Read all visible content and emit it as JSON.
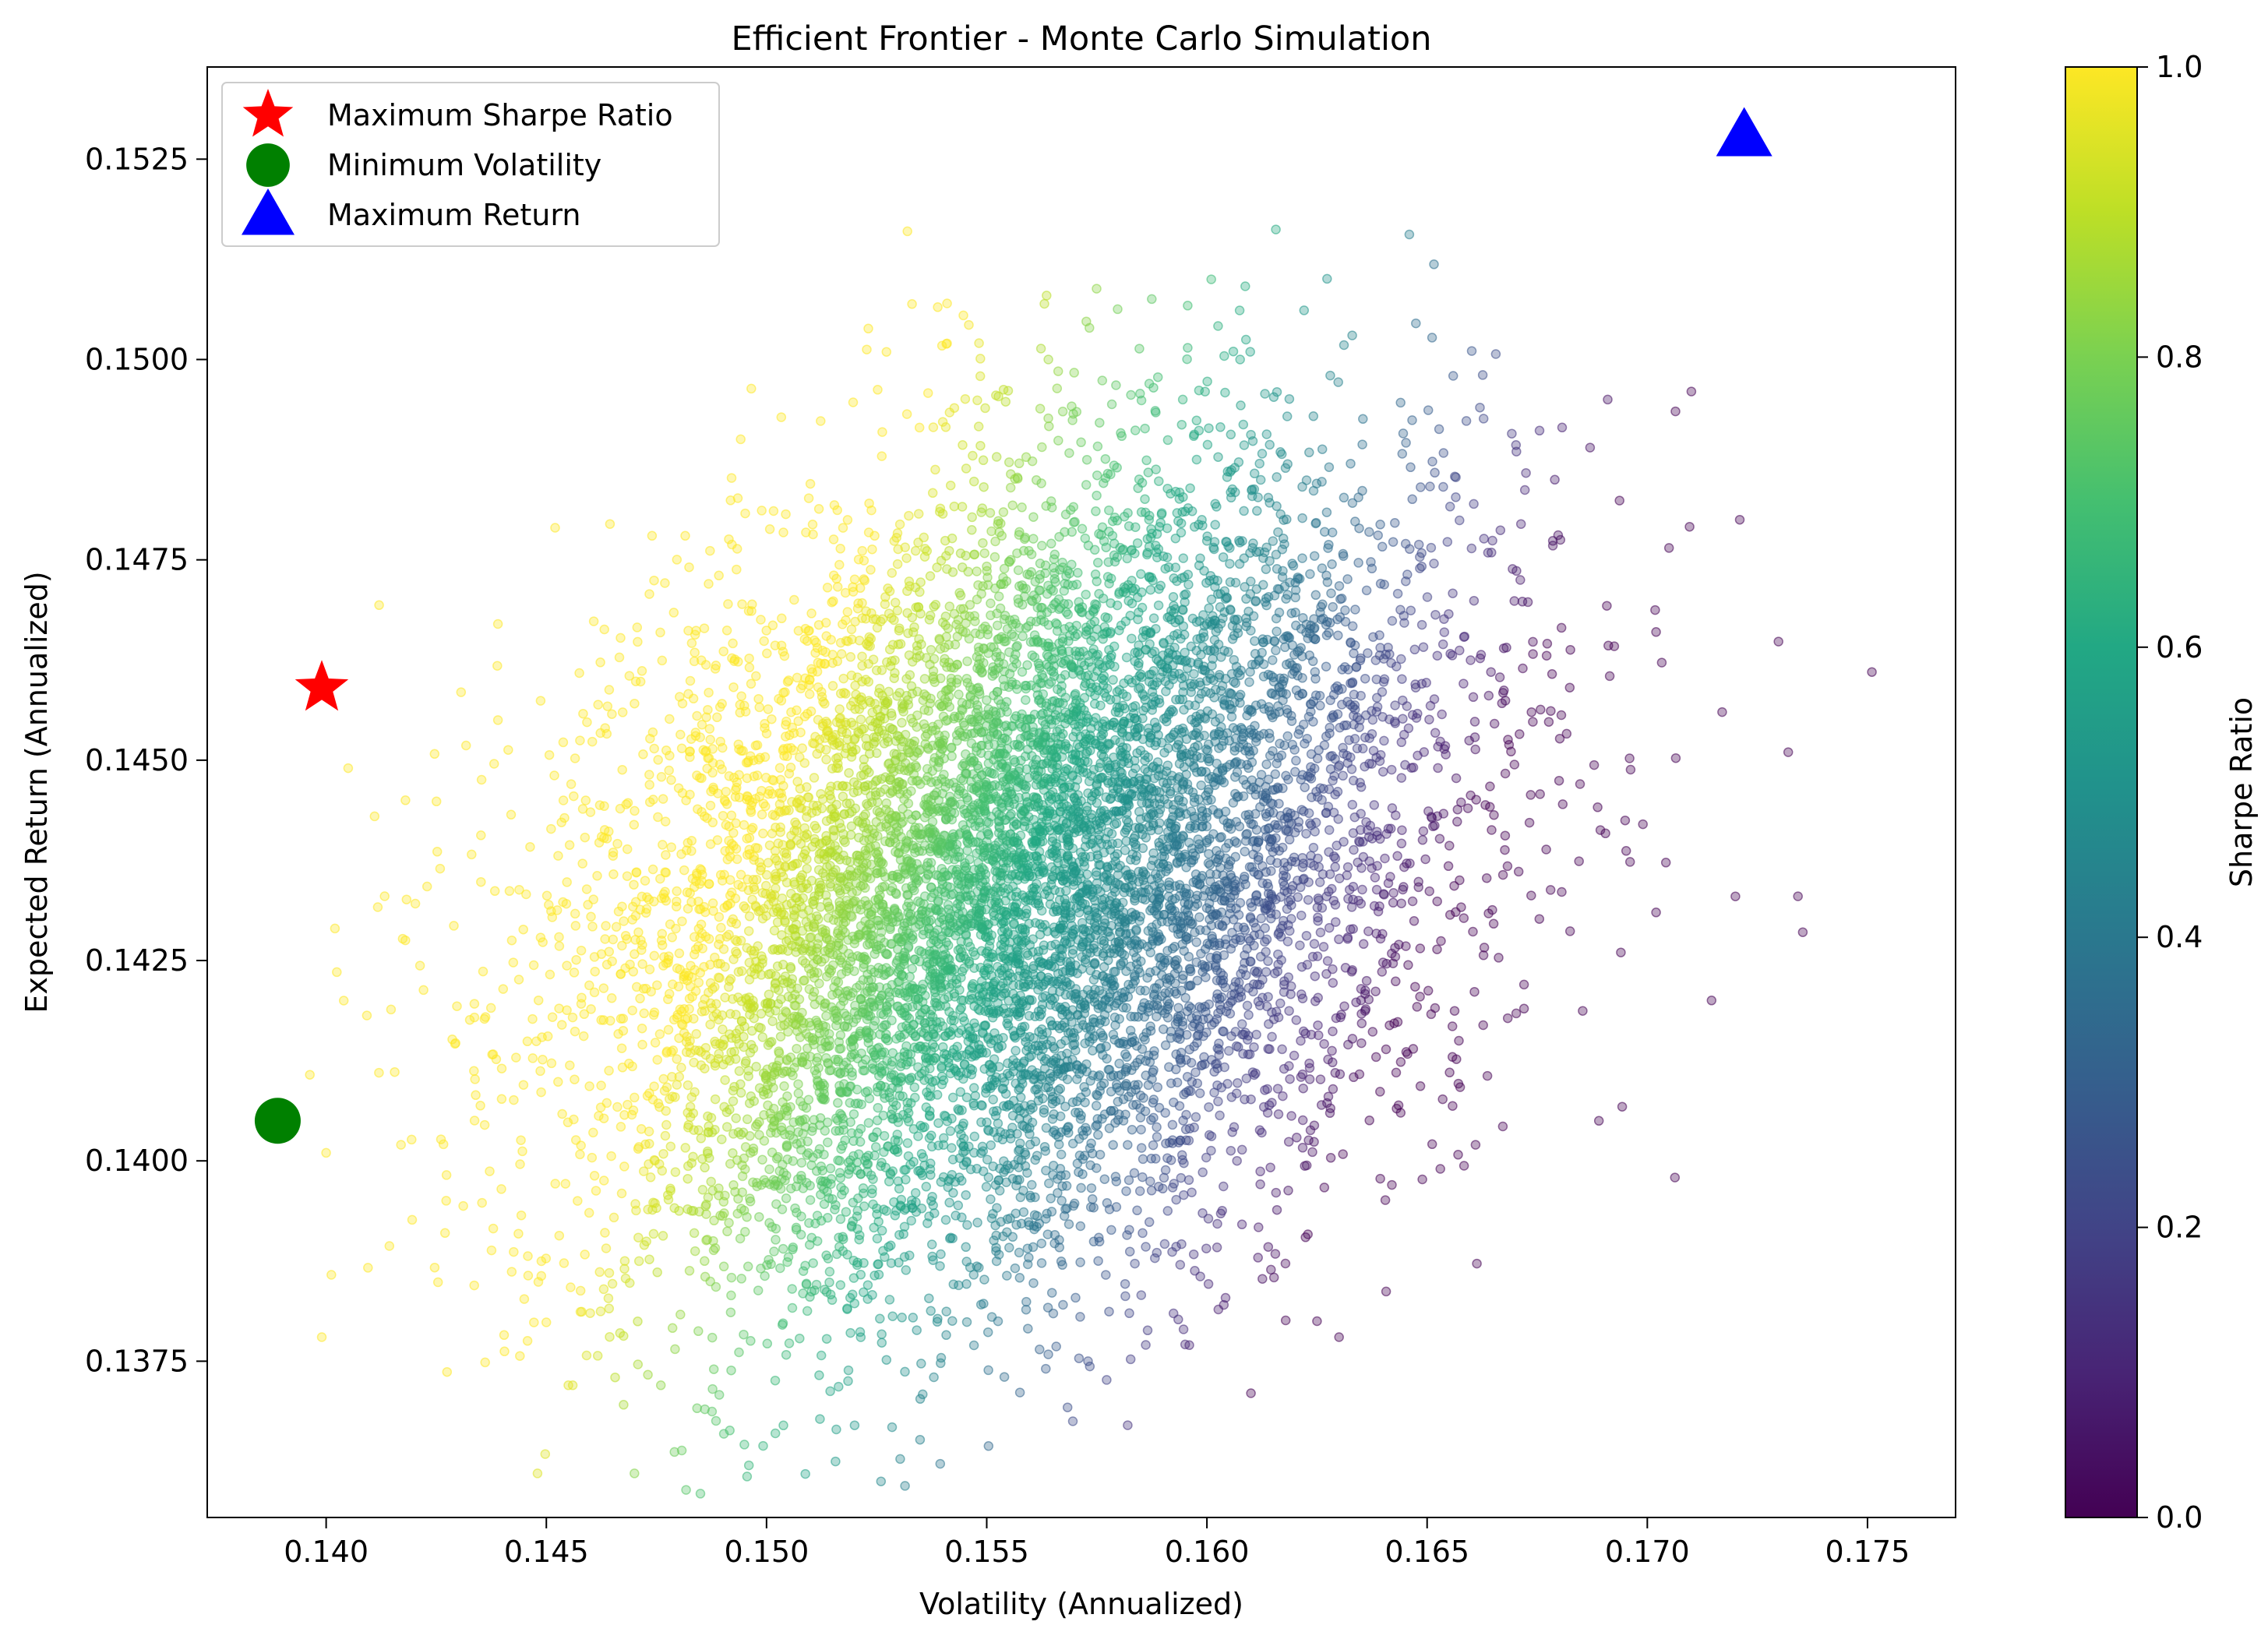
{
  "chart_data": {
    "type": "scatter",
    "title": "Efficient Frontier - Monte Carlo Simulation",
    "xlabel": "Volatility (Annualized)",
    "ylabel": "Expected Return (Annualized)",
    "xlim": [
      0.1373,
      0.177
    ],
    "ylim": [
      0.13555,
      0.15365
    ],
    "x_ticks": [
      0.14,
      0.145,
      0.15,
      0.155,
      0.16,
      0.165,
      0.17,
      0.175
    ],
    "x_tick_labels": [
      "0.140",
      "0.145",
      "0.150",
      "0.155",
      "0.160",
      "0.165",
      "0.170",
      "0.175"
    ],
    "y_ticks": [
      0.1375,
      0.14,
      0.1425,
      0.145,
      0.1475,
      0.15,
      0.1525
    ],
    "y_tick_labels": [
      "0.1375",
      "0.1400",
      "0.1425",
      "0.1450",
      "0.1475",
      "0.1500",
      "0.1525"
    ],
    "grid": false,
    "legend_position": "top-left",
    "colormap": "viridis",
    "colorbar": {
      "label": "Sharpe Ratio",
      "range": [
        0.0,
        1.0
      ],
      "ticks": [
        0.0,
        0.2,
        0.4,
        0.6,
        0.8,
        1.0
      ],
      "tick_labels": [
        "0.0",
        "0.2",
        "0.4",
        "0.6",
        "0.8",
        "1.0"
      ]
    },
    "simulation": {
      "point_color_by": "Sharpe Ratio",
      "point_alpha": 0.35,
      "center": {
        "x": 0.1555,
        "y": 0.1435
      },
      "std": {
        "x": 0.0048,
        "y": 0.0025
      },
      "correlation": 0.32
    },
    "outlier_points": [
      {
        "x": 0.1532,
        "y": 0.1516
      },
      {
        "x": 0.1601,
        "y": 0.151
      },
      {
        "x": 0.1541,
        "y": 0.1507
      },
      {
        "x": 0.171,
        "y": 0.1496
      },
      {
        "x": 0.1691,
        "y": 0.1495
      },
      {
        "x": 0.1452,
        "y": 0.1479
      },
      {
        "x": 0.1474,
        "y": 0.1478
      },
      {
        "x": 0.1721,
        "y": 0.148
      },
      {
        "x": 0.1751,
        "y": 0.1461
      },
      {
        "x": 0.1717,
        "y": 0.1456
      },
      {
        "x": 0.1732,
        "y": 0.1451
      },
      {
        "x": 0.1702,
        "y": 0.1466
      },
      {
        "x": 0.172,
        "y": 0.1433
      },
      {
        "x": 0.1699,
        "y": 0.1442
      },
      {
        "x": 0.1694,
        "y": 0.1426
      },
      {
        "x": 0.1689,
        "y": 0.1405
      },
      {
        "x": 0.1702,
        "y": 0.1431
      },
      {
        "x": 0.1405,
        "y": 0.1449
      },
      {
        "x": 0.1411,
        "y": 0.1443
      },
      {
        "x": 0.1418,
        "y": 0.1445
      },
      {
        "x": 0.1402,
        "y": 0.1429
      },
      {
        "x": 0.1404,
        "y": 0.142
      },
      {
        "x": 0.14,
        "y": 0.1401
      },
      {
        "x": 0.1399,
        "y": 0.1378
      },
      {
        "x": 0.1427,
        "y": 0.1391
      },
      {
        "x": 0.1417,
        "y": 0.1402
      },
      {
        "x": 0.1412,
        "y": 0.1411
      },
      {
        "x": 0.1439,
        "y": 0.1467
      },
      {
        "x": 0.1439,
        "y": 0.1455
      },
      {
        "x": 0.147,
        "y": 0.1361
      },
      {
        "x": 0.1496,
        "y": 0.1362
      },
      {
        "x": 0.1526,
        "y": 0.136
      },
      {
        "x": 0.161,
        "y": 0.1371
      },
      {
        "x": 0.1456,
        "y": 0.1372
      },
      {
        "x": 0.1455,
        "y": 0.1372
      },
      {
        "x": 0.1502,
        "y": 0.1366
      },
      {
        "x": 0.152,
        "y": 0.1367
      },
      {
        "x": 0.1625,
        "y": 0.138
      },
      {
        "x": 0.163,
        "y": 0.1378
      },
      {
        "x": 0.1596,
        "y": 0.1377
      },
      {
        "x": 0.1644,
        "y": 0.1406
      },
      {
        "x": 0.1661,
        "y": 0.1402
      },
      {
        "x": 0.1653,
        "y": 0.1399
      },
      {
        "x": 0.1642,
        "y": 0.1397
      },
      {
        "x": 0.1672,
        "y": 0.1419
      },
      {
        "x": 0.1672,
        "y": 0.1422
      },
      {
        "x": 0.1633,
        "y": 0.1503
      },
      {
        "x": 0.1628,
        "y": 0.1498
      },
      {
        "x": 0.1606,
        "y": 0.1501
      },
      {
        "x": 0.1564,
        "y": 0.15
      },
      {
        "x": 0.1541,
        "y": 0.1502
      },
      {
        "x": 0.1662,
        "y": 0.1494
      },
      {
        "x": 0.1687,
        "y": 0.1489
      },
      {
        "x": 0.1679,
        "y": 0.1485
      },
      {
        "x": 0.1448,
        "y": 0.1361
      },
      {
        "x": 0.1486,
        "y": 0.1369
      },
      {
        "x": 0.1476,
        "y": 0.1372
      },
      {
        "x": 0.1573,
        "y": 0.1375
      },
      {
        "x": 0.1538,
        "y": 0.1373
      }
    ],
    "special_points": [
      {
        "name": "Maximum Sharpe Ratio",
        "x": 0.1399,
        "y": 0.1459,
        "marker": "star",
        "color": "#ff0000"
      },
      {
        "name": "Minimum Volatility",
        "x": 0.1389,
        "y": 0.1405,
        "marker": "circle",
        "color": "#008000"
      },
      {
        "name": "Maximum Return",
        "x": 0.1722,
        "y": 0.1528,
        "marker": "triangle",
        "color": "#0000ff"
      }
    ]
  }
}
